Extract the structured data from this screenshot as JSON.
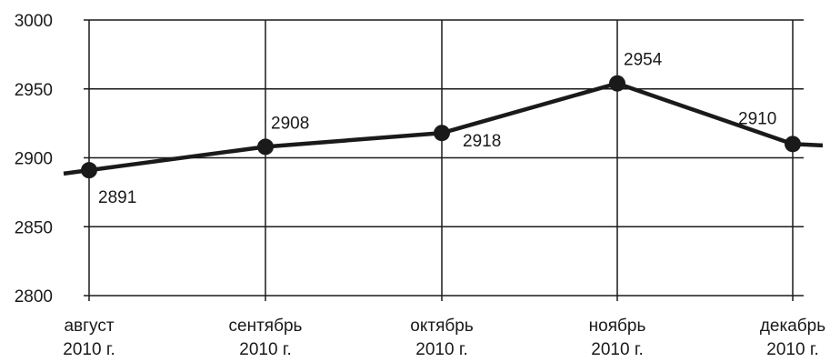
{
  "chart_data": {
    "type": "line",
    "categories": [
      [
        "август",
        "2010 г."
      ],
      [
        "сентябрь",
        "2010 г."
      ],
      [
        "октябрь",
        "2010 г."
      ],
      [
        "ноябрь",
        "2010 г."
      ],
      [
        "декабрь",
        "2010 г."
      ]
    ],
    "series": [
      {
        "values": [
          2891,
          2908,
          2918,
          2954,
          2910
        ]
      }
    ],
    "value_labels": [
      "2891",
      "2908",
      "2918",
      "2954",
      "2910"
    ],
    "y_ticks": [
      "3000",
      "2950",
      "2900",
      "2850",
      "2800"
    ],
    "ylim": [
      2800,
      3000
    ],
    "grid": true,
    "line_color": "#1a1a1a",
    "grid_color": "#1a1a1a"
  }
}
